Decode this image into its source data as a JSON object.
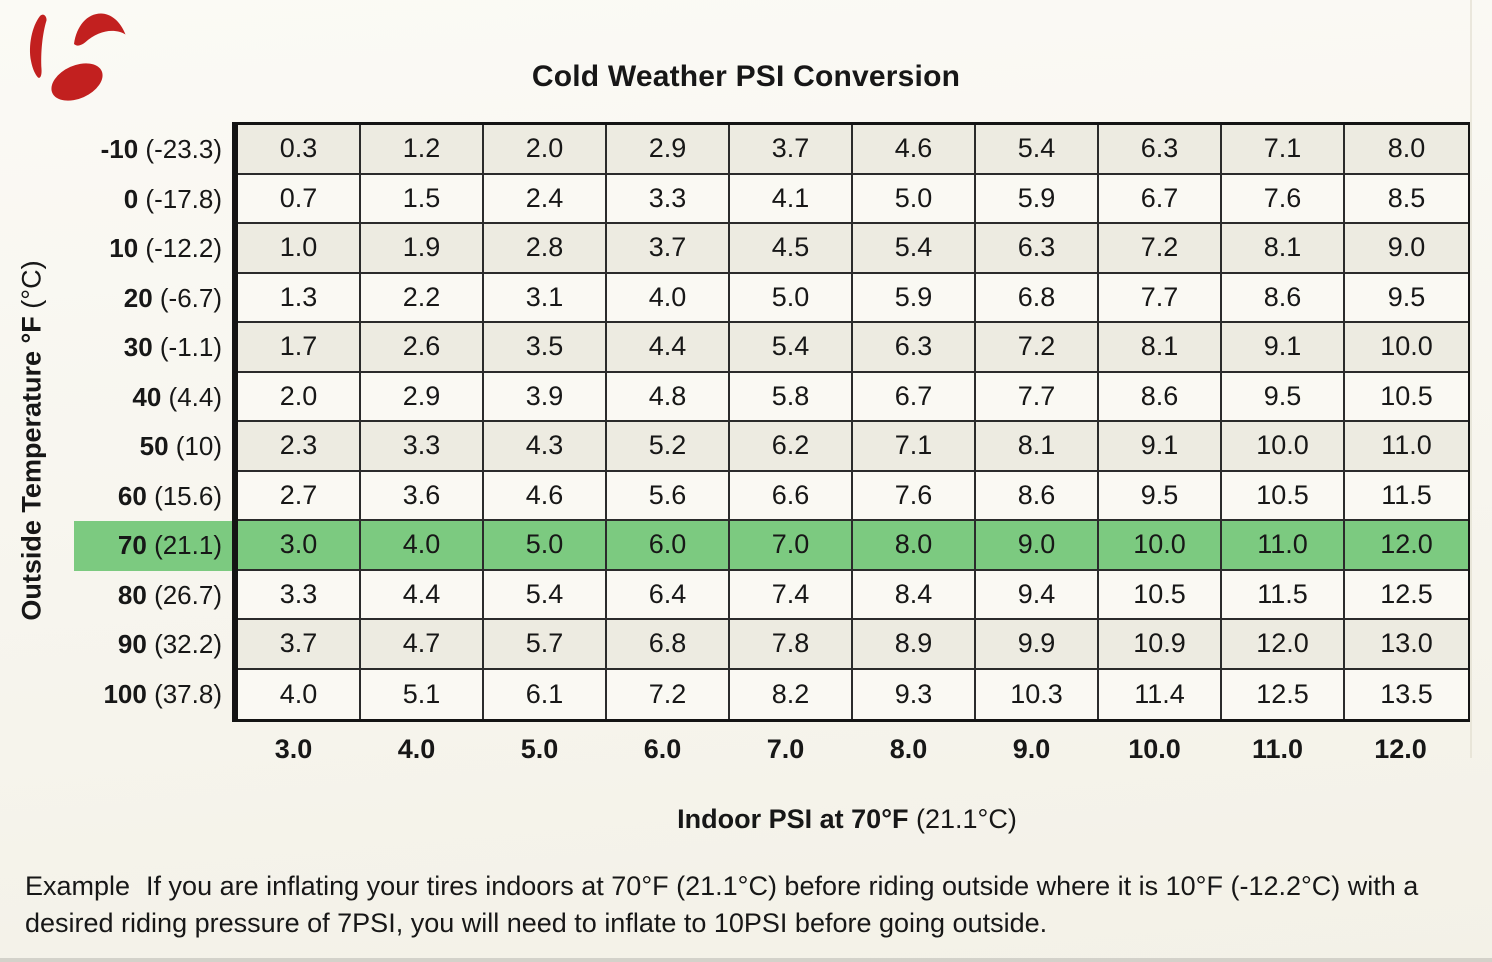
{
  "title": "Cold Weather PSI Conversion",
  "logo": {
    "name": "bontrager-logo",
    "color": "#c2201f"
  },
  "colors": {
    "highlight_green": "#7cca80",
    "row_tint": "#edebe1",
    "paper": "#f7f5ee",
    "text": "#171717"
  },
  "axis": {
    "y_label_bold": "Outside Temperature °F",
    "y_label_normal": "(°C)",
    "x_label_bold": "Indoor PSI at 70°F",
    "x_label_normal": "(21.1°C)"
  },
  "table": {
    "columns": [
      "3.0",
      "4.0",
      "5.0",
      "6.0",
      "7.0",
      "8.0",
      "9.0",
      "10.0",
      "11.0",
      "12.0"
    ],
    "rows": [
      {
        "f": "-10",
        "c": "(-23.3)",
        "tint": true,
        "highlight": false,
        "values": [
          "0.3",
          "1.2",
          "2.0",
          "2.9",
          "3.7",
          "4.6",
          "5.4",
          "6.3",
          "7.1",
          "8.0"
        ]
      },
      {
        "f": "0",
        "c": "(-17.8)",
        "tint": false,
        "highlight": false,
        "values": [
          "0.7",
          "1.5",
          "2.4",
          "3.3",
          "4.1",
          "5.0",
          "5.9",
          "6.7",
          "7.6",
          "8.5"
        ]
      },
      {
        "f": "10",
        "c": "(-12.2)",
        "tint": true,
        "highlight": false,
        "values": [
          "1.0",
          "1.9",
          "2.8",
          "3.7",
          "4.5",
          "5.4",
          "6.3",
          "7.2",
          "8.1",
          "9.0"
        ]
      },
      {
        "f": "20",
        "c": "(-6.7)",
        "tint": false,
        "highlight": false,
        "values": [
          "1.3",
          "2.2",
          "3.1",
          "4.0",
          "5.0",
          "5.9",
          "6.8",
          "7.7",
          "8.6",
          "9.5"
        ]
      },
      {
        "f": "30",
        "c": "(-1.1)",
        "tint": true,
        "highlight": false,
        "values": [
          "1.7",
          "2.6",
          "3.5",
          "4.4",
          "5.4",
          "6.3",
          "7.2",
          "8.1",
          "9.1",
          "10.0"
        ]
      },
      {
        "f": "40",
        "c": "(4.4)",
        "tint": false,
        "highlight": false,
        "values": [
          "2.0",
          "2.9",
          "3.9",
          "4.8",
          "5.8",
          "6.7",
          "7.7",
          "8.6",
          "9.5",
          "10.5"
        ]
      },
      {
        "f": "50",
        "c": "(10)",
        "tint": true,
        "highlight": false,
        "values": [
          "2.3",
          "3.3",
          "4.3",
          "5.2",
          "6.2",
          "7.1",
          "8.1",
          "9.1",
          "10.0",
          "11.0"
        ]
      },
      {
        "f": "60",
        "c": "(15.6)",
        "tint": false,
        "highlight": false,
        "values": [
          "2.7",
          "3.6",
          "4.6",
          "5.6",
          "6.6",
          "7.6",
          "8.6",
          "9.5",
          "10.5",
          "11.5"
        ]
      },
      {
        "f": "70",
        "c": "(21.1)",
        "tint": false,
        "highlight": true,
        "values": [
          "3.0",
          "4.0",
          "5.0",
          "6.0",
          "7.0",
          "8.0",
          "9.0",
          "10.0",
          "11.0",
          "12.0"
        ]
      },
      {
        "f": "80",
        "c": "(26.7)",
        "tint": false,
        "highlight": false,
        "values": [
          "3.3",
          "4.4",
          "5.4",
          "6.4",
          "7.4",
          "8.4",
          "9.4",
          "10.5",
          "11.5",
          "12.5"
        ]
      },
      {
        "f": "90",
        "c": "(32.2)",
        "tint": true,
        "highlight": false,
        "values": [
          "3.7",
          "4.7",
          "5.7",
          "6.8",
          "7.8",
          "8.9",
          "9.9",
          "10.9",
          "12.0",
          "13.0"
        ]
      },
      {
        "f": "100",
        "c": "(37.8)",
        "tint": false,
        "highlight": false,
        "values": [
          "4.0",
          "5.1",
          "6.1",
          "7.2",
          "8.2",
          "9.3",
          "10.3",
          "11.4",
          "12.5",
          "13.5"
        ]
      }
    ]
  },
  "example": {
    "label": "Example",
    "text": "If you are inflating your tires indoors at 70°F (21.1°C) before riding outside where it is 10°F (-12.2°C) with a desired riding pressure of 7PSI, you will need to inflate to 10PSI before going outside."
  }
}
